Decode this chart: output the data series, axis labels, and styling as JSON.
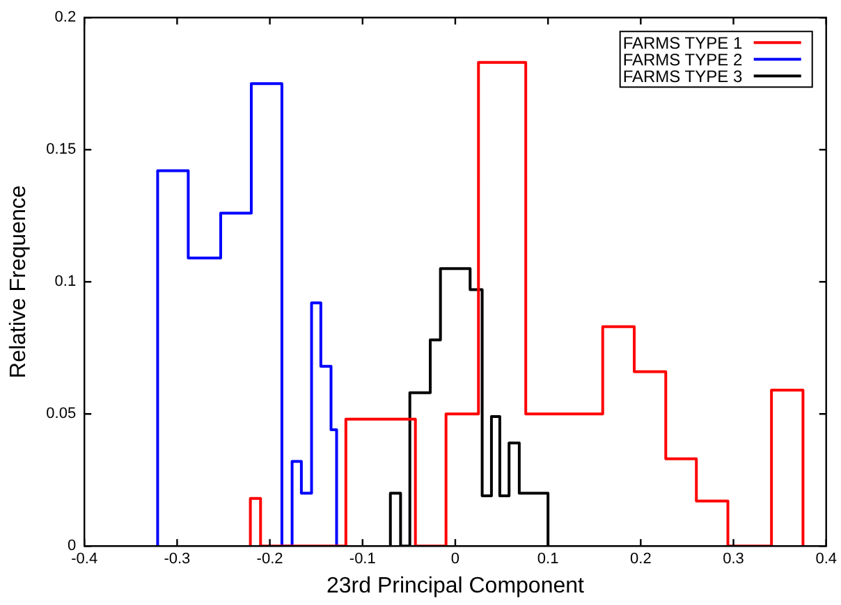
{
  "chart_data": {
    "type": "step",
    "xlabel": "23rd Principal Component",
    "ylabel": "Relative Frequence",
    "xlim": [
      -0.4,
      0.4
    ],
    "xticks": [
      -0.4,
      -0.3,
      -0.2,
      -0.1,
      0,
      0.1,
      0.2,
      0.3,
      0.4
    ],
    "ylim": [
      0,
      0.2
    ],
    "yticks": [
      0,
      0.05,
      0.1,
      0.15,
      0.2
    ],
    "grid": false,
    "legend": "top right",
    "series": [
      {
        "name": "FARMS TYPE 1",
        "color": "#ff0000",
        "x": [
          -0.221,
          -0.221,
          -0.21,
          -0.118,
          -0.043,
          -0.01,
          0.025,
          0.076,
          0.159,
          0.193,
          0.227,
          0.26,
          0.294,
          0.341,
          0.375
        ],
        "values": [
          0,
          0.018,
          0,
          0.048,
          0,
          0.05,
          0.183,
          0.05,
          0.083,
          0.066,
          0.033,
          0.017,
          0,
          0.059,
          0
        ]
      },
      {
        "name": "FARMS TYPE 2",
        "color": "#0000ff",
        "x": [
          -0.321,
          -0.321,
          -0.288,
          -0.253,
          -0.22,
          -0.187,
          -0.176,
          -0.166,
          -0.155,
          -0.145,
          -0.134,
          -0.128
        ],
        "values": [
          0,
          0.142,
          0.109,
          0.126,
          0.175,
          0,
          0.032,
          0.02,
          0.092,
          0.068,
          0.044,
          0
        ]
      },
      {
        "name": "FARMS TYPE 3",
        "color": "#000000",
        "x": [
          -0.07,
          -0.07,
          -0.059,
          -0.049,
          -0.027,
          -0.016,
          0.016,
          0.029,
          0.039,
          0.048,
          0.058,
          0.069,
          0.1
        ],
        "values": [
          0,
          0.02,
          0,
          0.058,
          0.078,
          0.105,
          0.097,
          0.019,
          0.049,
          0.019,
          0.039,
          0.02,
          0
        ]
      }
    ]
  }
}
